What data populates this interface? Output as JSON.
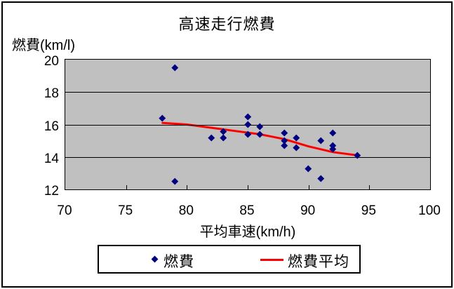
{
  "chart_data": {
    "type": "scatter",
    "title": "高速走行燃費",
    "y_unit_label": "燃費(km/l)",
    "xlabel": "平均車速(km/h)",
    "xlim": [
      70,
      100
    ],
    "ylim": [
      12,
      20
    ],
    "x_ticks": [
      70,
      75,
      80,
      85,
      90,
      95,
      100
    ],
    "y_ticks": [
      12,
      14,
      16,
      18,
      20
    ],
    "grid": "horizontal-only",
    "plot_bg_color": "#c0c0c0",
    "marker_color": "#000080",
    "line_color": "#ff0000",
    "series": [
      {
        "name": "燃費",
        "type": "scatter",
        "marker": "diamond",
        "color": "#000080",
        "points": [
          [
            78,
            16.4
          ],
          [
            79,
            19.5
          ],
          [
            79,
            12.5
          ],
          [
            82,
            15.2
          ],
          [
            83,
            15.6
          ],
          [
            83,
            15.2
          ],
          [
            85,
            16.5
          ],
          [
            85,
            16.0
          ],
          [
            85,
            15.4
          ],
          [
            86,
            15.9
          ],
          [
            86,
            15.4
          ],
          [
            88,
            15.5
          ],
          [
            88,
            15.0
          ],
          [
            88,
            14.7
          ],
          [
            89,
            15.2
          ],
          [
            89,
            14.6
          ],
          [
            90,
            13.3
          ],
          [
            91,
            15.0
          ],
          [
            91,
            12.7
          ],
          [
            92,
            15.5
          ],
          [
            92,
            14.7
          ],
          [
            92,
            14.5
          ],
          [
            94,
            14.1
          ]
        ]
      },
      {
        "name": "燃費平均",
        "type": "line",
        "color": "#ff0000",
        "points": [
          [
            78,
            16.1
          ],
          [
            80,
            16.0
          ],
          [
            82,
            15.8
          ],
          [
            84,
            15.6
          ],
          [
            86,
            15.4
          ],
          [
            88,
            15.1
          ],
          [
            90,
            14.65
          ],
          [
            92,
            14.3
          ],
          [
            94,
            14.1
          ]
        ]
      }
    ],
    "legend": {
      "position": "bottom",
      "items": [
        {
          "label": "燃費",
          "marker": "diamond",
          "color": "#000080"
        },
        {
          "label": "燃費平均",
          "marker": "line",
          "color": "#ff0000"
        }
      ]
    }
  }
}
